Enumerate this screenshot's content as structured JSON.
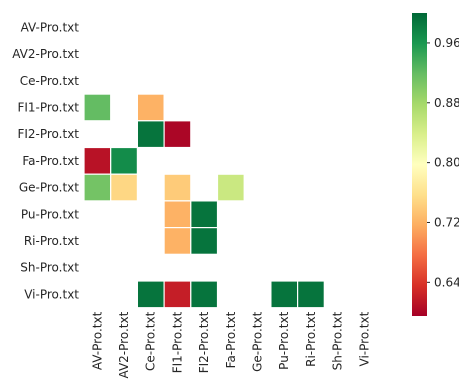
{
  "chart_data": {
    "type": "heatmap",
    "row_labels": [
      "AV-Pro.txt",
      "AV2-Pro.txt",
      "Ce-Pro.txt",
      "FI1-Pro.txt",
      "FI2-Pro.txt",
      "Fa-Pro.txt",
      "Ge-Pro.txt",
      "Pu-Pro.txt",
      "Ri-Pro.txt",
      "Sh-Pro.txt",
      "Vi-Pro.txt"
    ],
    "col_labels": [
      "AV-Pro.txt",
      "AV2-Pro.txt",
      "Ce-Pro.txt",
      "FI1-Pro.txt",
      "FI2-Pro.txt",
      "Fa-Pro.txt",
      "Ge-Pro.txt",
      "Pu-Pro.txt",
      "Ri-Pro.txt",
      "Sh-Pro.txt",
      "Vi-Pro.txt"
    ],
    "values": [
      [
        null,
        null,
        null,
        null,
        null,
        null,
        null,
        null,
        null,
        null,
        null
      ],
      [
        null,
        null,
        null,
        null,
        null,
        null,
        null,
        null,
        null,
        null,
        null
      ],
      [
        null,
        null,
        null,
        null,
        null,
        null,
        null,
        null,
        null,
        null,
        null
      ],
      [
        0.92,
        null,
        0.72,
        null,
        null,
        null,
        null,
        null,
        null,
        null,
        null
      ],
      [
        null,
        null,
        0.99,
        0.6,
        null,
        null,
        null,
        null,
        null,
        null,
        null
      ],
      [
        0.61,
        0.97,
        null,
        null,
        null,
        null,
        null,
        null,
        null,
        null,
        null
      ],
      [
        0.91,
        0.75,
        null,
        0.74,
        null,
        0.85,
        null,
        null,
        null,
        null,
        null
      ],
      [
        null,
        null,
        null,
        0.72,
        0.99,
        null,
        null,
        null,
        null,
        null,
        null
      ],
      [
        null,
        null,
        null,
        0.72,
        0.99,
        null,
        null,
        null,
        null,
        null,
        null
      ],
      [
        null,
        null,
        null,
        null,
        null,
        null,
        null,
        null,
        null,
        null,
        null
      ],
      [
        null,
        null,
        0.99,
        0.62,
        0.99,
        null,
        null,
        0.99,
        0.99,
        null,
        null
      ]
    ],
    "colorbar": {
      "colormap": "RdYlGn",
      "vmin": 0.595,
      "vmax": 1.0,
      "ticks": [
        0.64,
        0.72,
        0.8,
        0.88,
        0.96
      ],
      "tick_labels": [
        "0.64",
        "0.72",
        "0.80",
        "0.88",
        "0.96"
      ]
    },
    "title": "",
    "xlabel": "",
    "ylabel": "",
    "grid": false
  }
}
